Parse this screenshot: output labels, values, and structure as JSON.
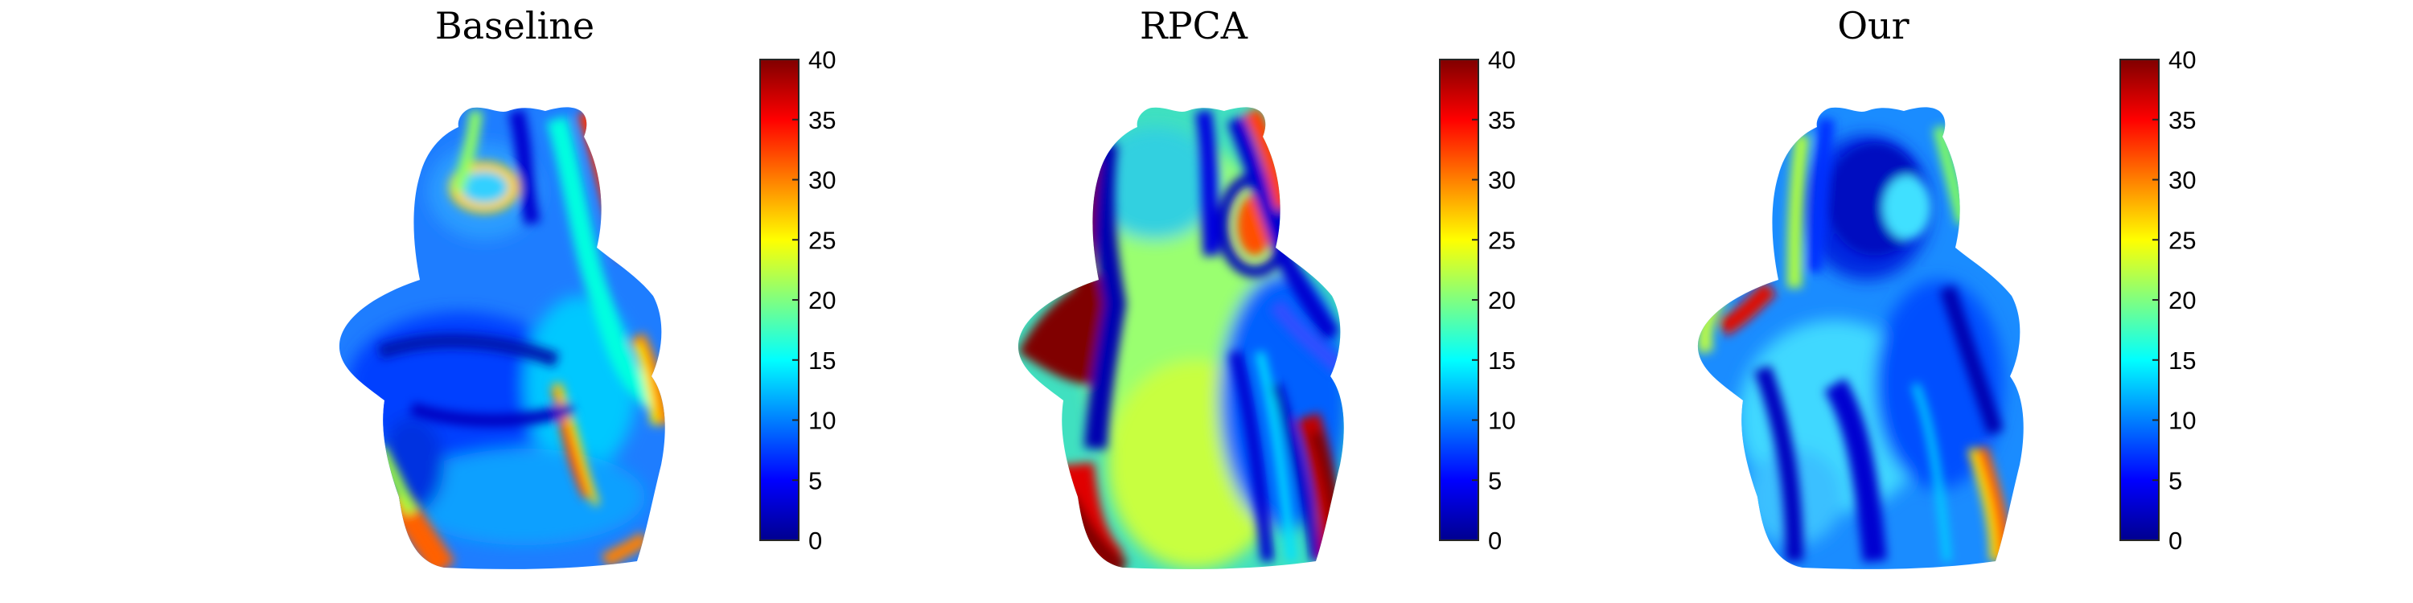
{
  "chart_data": [
    {
      "type": "heatmap",
      "title": "Baseline",
      "colormap": "jet",
      "colorbar": {
        "min": 0,
        "max": 40,
        "ticks": [
          0,
          5,
          10,
          15,
          20,
          25,
          30,
          35,
          40
        ]
      },
      "description_id": "baseline"
    },
    {
      "type": "heatmap",
      "title": "RPCA",
      "colormap": "jet",
      "colorbar": {
        "min": 0,
        "max": 40,
        "ticks": [
          0,
          5,
          10,
          15,
          20,
          25,
          30,
          35,
          40
        ]
      },
      "description_id": "rpca"
    },
    {
      "type": "heatmap",
      "title": "Our",
      "colormap": "jet",
      "colorbar": {
        "min": 0,
        "max": 40,
        "ticks": [
          0,
          5,
          10,
          15,
          20,
          25,
          30,
          35,
          40
        ]
      },
      "description_id": "our"
    }
  ],
  "colors": {
    "jet": [
      "#00008f",
      "#0000ff",
      "#0080ff",
      "#00ffff",
      "#80ff80",
      "#ffff00",
      "#ff8000",
      "#ff0000",
      "#800000"
    ]
  }
}
